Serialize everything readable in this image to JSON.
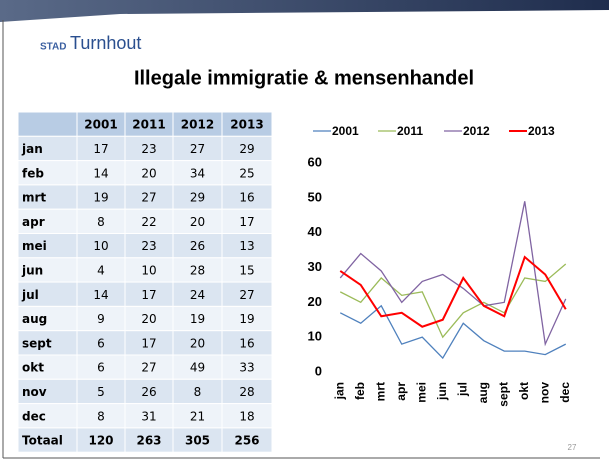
{
  "header": {
    "logo_small": "STAD",
    "logo": "Turnhout"
  },
  "title": "Illegale immigratie & mensenhandel",
  "table": {
    "total_label": "Totaal",
    "totals": [
      120,
      263,
      305,
      256
    ]
  },
  "page_number": "27",
  "chart_data": {
    "type": "line",
    "categories": [
      "jan",
      "feb",
      "mrt",
      "apr",
      "mei",
      "jun",
      "jul",
      "aug",
      "sept",
      "okt",
      "nov",
      "dec"
    ],
    "series": [
      {
        "name": "2001",
        "color": "#4f81bd",
        "values": [
          17,
          14,
          19,
          8,
          10,
          4,
          14,
          9,
          6,
          6,
          5,
          8
        ]
      },
      {
        "name": "2011",
        "color": "#9bbb59",
        "values": [
          23,
          20,
          27,
          22,
          23,
          10,
          17,
          20,
          17,
          27,
          26,
          31
        ]
      },
      {
        "name": "2012",
        "color": "#8064a2",
        "values": [
          27,
          34,
          29,
          20,
          26,
          28,
          24,
          19,
          20,
          49,
          8,
          21
        ]
      },
      {
        "name": "2013",
        "color": "#ff0000",
        "values": [
          29,
          25,
          16,
          17,
          13,
          15,
          27,
          19,
          16,
          33,
          28,
          18
        ]
      }
    ],
    "ylim": [
      0,
      60
    ],
    "yticks": [
      0,
      10,
      20,
      30,
      40,
      50,
      60
    ],
    "grid": false,
    "legend": "top"
  }
}
